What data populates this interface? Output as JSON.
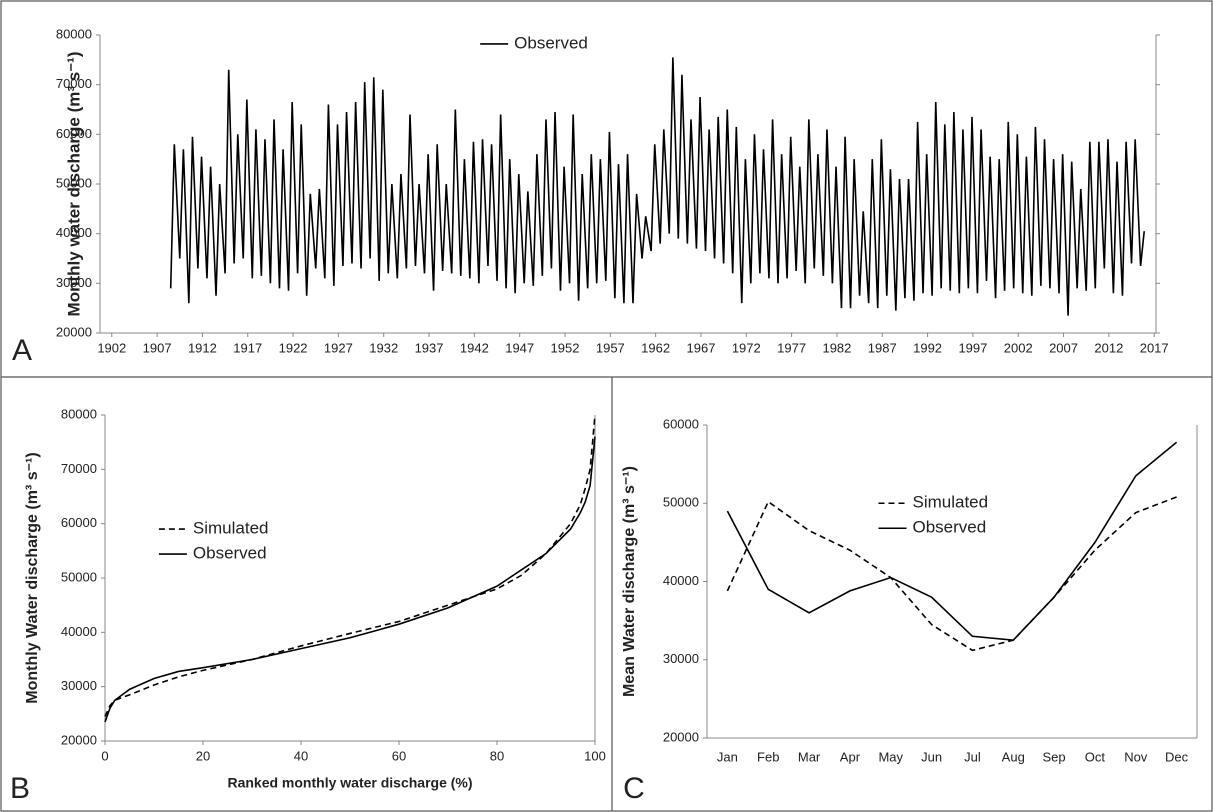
{
  "chart_data": [
    {
      "type": "line",
      "panel_label": "A",
      "y_label": "Monthly water discharge (m³ s⁻¹)",
      "xlim": [
        1900.7,
        2017.2
      ],
      "xticks": [
        1902,
        1907,
        1912,
        1917,
        1922,
        1927,
        1932,
        1937,
        1942,
        1947,
        1952,
        1957,
        1962,
        1967,
        1972,
        1977,
        1982,
        1987,
        1992,
        1997,
        2002,
        2007,
        2012,
        2017
      ],
      "ylim": [
        20000,
        80000
      ],
      "yticks": [
        20000,
        30000,
        40000,
        50000,
        60000,
        70000,
        80000
      ],
      "legend": "top",
      "x": [
        1908.5,
        1908.9,
        1909.5,
        1909.9,
        1910.5,
        1910.9,
        1911.5,
        1911.9,
        1912.5,
        1912.9,
        1913.5,
        1913.9,
        1914.5,
        1914.9,
        1915.5,
        1915.9,
        1916.5,
        1916.9,
        1917.5,
        1917.9,
        1918.5,
        1918.9,
        1919.5,
        1919.9,
        1920.5,
        1920.9,
        1921.5,
        1921.9,
        1922.5,
        1922.9,
        1923.5,
        1923.9,
        1924.5,
        1924.9,
        1925.5,
        1925.9,
        1926.5,
        1926.9,
        1927.5,
        1927.9,
        1928.5,
        1928.9,
        1929.5,
        1929.9,
        1930.5,
        1930.9,
        1931.5,
        1931.9,
        1932.5,
        1932.9,
        1933.5,
        1933.9,
        1934.5,
        1934.9,
        1935.5,
        1935.9,
        1936.5,
        1936.9,
        1937.5,
        1937.9,
        1938.5,
        1938.9,
        1939.5,
        1939.9,
        1940.5,
        1940.9,
        1941.5,
        1941.9,
        1942.5,
        1942.9,
        1943.5,
        1943.9,
        1944.5,
        1944.9,
        1945.5,
        1945.9,
        1946.5,
        1946.9,
        1947.5,
        1947.9,
        1948.5,
        1948.9,
        1949.5,
        1949.9,
        1950.5,
        1950.9,
        1951.5,
        1951.9,
        1952.5,
        1952.9,
        1953.5,
        1953.9,
        1954.5,
        1954.9,
        1955.5,
        1955.9,
        1956.5,
        1956.9,
        1957.5,
        1957.9,
        1958.5,
        1958.9,
        1959.5,
        1959.9,
        1960.5,
        1960.9,
        1961.5,
        1961.9,
        1962.5,
        1962.9,
        1963.5,
        1963.9,
        1964.5,
        1964.9,
        1965.5,
        1965.9,
        1966.5,
        1966.9,
        1967.5,
        1967.9,
        1968.5,
        1968.9,
        1969.5,
        1969.9,
        1970.5,
        1970.9,
        1971.5,
        1971.9,
        1972.5,
        1972.9,
        1973.5,
        1973.9,
        1974.5,
        1974.9,
        1975.5,
        1975.9,
        1976.5,
        1976.9,
        1977.5,
        1977.9,
        1978.5,
        1978.9,
        1979.5,
        1979.9,
        1980.5,
        1980.9,
        1981.5,
        1981.9,
        1982.5,
        1982.9,
        1983.5,
        1983.9,
        1984.5,
        1984.9,
        1985.5,
        1985.9,
        1986.5,
        1986.9,
        1987.5,
        1987.9,
        1988.5,
        1988.9,
        1989.5,
        1989.9,
        1990.5,
        1990.9,
        1991.5,
        1991.9,
        1992.5,
        1992.9,
        1993.5,
        1993.9,
        1994.5,
        1994.9,
        1995.5,
        1995.9,
        1996.5,
        1996.9,
        1997.5,
        1997.9,
        1998.5,
        1998.9,
        1999.5,
        1999.9,
        2000.5,
        2000.9,
        2001.5,
        2001.9,
        2002.5,
        2002.9,
        2003.5,
        2003.9,
        2004.5,
        2004.9,
        2005.5,
        2005.9,
        2006.5,
        2006.9,
        2007.5,
        2007.9,
        2008.5,
        2008.9,
        2009.5,
        2009.9,
        2010.5,
        2010.9,
        2011.5,
        2011.9,
        2012.5,
        2012.9,
        2013.5,
        2013.9,
        2014.5,
        2014.9,
        2015.5,
        2015.9
      ],
      "series": [
        {
          "name": "Observed",
          "color": "#000000",
          "style": "solid",
          "values": [
            29000,
            58000,
            35000,
            57000,
            26000,
            59500,
            33000,
            55500,
            31000,
            53500,
            27500,
            50000,
            32000,
            73000,
            34000,
            60000,
            35000,
            67000,
            31000,
            61000,
            31500,
            59000,
            30000,
            63000,
            29000,
            57000,
            28500,
            66500,
            32000,
            62000,
            27500,
            48000,
            33000,
            49000,
            31000,
            66000,
            29500,
            62000,
            33500,
            64500,
            34000,
            66500,
            33000,
            70500,
            35000,
            71500,
            30500,
            69000,
            32000,
            50000,
            31000,
            52000,
            33000,
            64000,
            33500,
            50000,
            32000,
            56000,
            28500,
            58000,
            32500,
            50000,
            32000,
            65000,
            31500,
            55000,
            31000,
            58500,
            30000,
            59000,
            33500,
            58000,
            30500,
            64000,
            29000,
            55000,
            28000,
            52000,
            30000,
            48500,
            29500,
            56000,
            31500,
            63000,
            33000,
            64500,
            28500,
            53500,
            30000,
            64000,
            26500,
            52000,
            29000,
            56000,
            30000,
            55000,
            30500,
            60500,
            27000,
            54000,
            26000,
            56000,
            26000,
            48000,
            35000,
            43500,
            36500,
            58000,
            38000,
            61000,
            40000,
            75500,
            39000,
            72000,
            38000,
            63000,
            37000,
            67500,
            36500,
            61000,
            35000,
            63500,
            34000,
            65000,
            32000,
            61500,
            26000,
            55000,
            30000,
            60000,
            32000,
            57000,
            31000,
            63000,
            30000,
            56000,
            31000,
            59500,
            32500,
            53500,
            30000,
            63000,
            33000,
            56000,
            31500,
            61000,
            30000,
            53500,
            25000,
            59500,
            25000,
            55000,
            27500,
            44500,
            26000,
            55000,
            25000,
            59000,
            27500,
            53000,
            24500,
            51000,
            27000,
            51000,
            26500,
            62500,
            28000,
            56000,
            27500,
            66500,
            29000,
            62000,
            28500,
            64500,
            28000,
            61000,
            29000,
            63500,
            28000,
            61000,
            30500,
            55500,
            27000,
            55000,
            28500,
            62500,
            29000,
            60000,
            28000,
            55500,
            27500,
            61500,
            29500,
            59000,
            29000,
            55000,
            28000,
            56000,
            23500,
            54500,
            29000,
            49000,
            28500,
            58500,
            29000,
            58500,
            33000,
            59000,
            28000,
            54500,
            27500,
            58500,
            34000,
            59000,
            33500,
            40500
          ]
        }
      ]
    },
    {
      "type": "line",
      "panel_label": "B",
      "y_label": "Monthly Water discharge (m³ s⁻¹)",
      "x_label": "Ranked monthly water discharge (%)",
      "xlim": [
        0,
        100
      ],
      "xticks": [
        0,
        20,
        40,
        60,
        80,
        100
      ],
      "ylim": [
        20000,
        80000
      ],
      "yticks": [
        20000,
        30000,
        40000,
        50000,
        60000,
        70000,
        80000
      ],
      "legend": "center-left",
      "x": [
        0,
        1,
        2,
        5,
        10,
        15,
        20,
        30,
        40,
        50,
        60,
        70,
        80,
        85,
        90,
        95,
        97,
        98,
        99,
        100
      ],
      "series": [
        {
          "name": "Simulated",
          "color": "#000000",
          "style": "dashed",
          "values": [
            24500,
            26500,
            27500,
            28500,
            30300,
            31800,
            33000,
            35000,
            37500,
            39800,
            42000,
            45000,
            48000,
            50500,
            54500,
            60000,
            63500,
            66500,
            70000,
            80000
          ]
        },
        {
          "name": "Observed",
          "color": "#000000",
          "style": "solid",
          "values": [
            23500,
            26000,
            27500,
            29500,
            31500,
            32800,
            33500,
            35000,
            37000,
            39000,
            41500,
            44500,
            48500,
            51500,
            54500,
            59000,
            62000,
            64000,
            67000,
            76000
          ]
        }
      ]
    },
    {
      "type": "line",
      "panel_label": "C",
      "y_label": "Mean Water discharge (m³ s⁻¹)",
      "categories": [
        "Jan",
        "Feb",
        "Mar",
        "Apr",
        "May",
        "Jun",
        "Jul",
        "Aug",
        "Sep",
        "Oct",
        "Nov",
        "Dec"
      ],
      "ylim": [
        20000,
        60000
      ],
      "yticks": [
        20000,
        30000,
        40000,
        50000,
        60000
      ],
      "legend": "center",
      "series": [
        {
          "name": "Simulated",
          "color": "#000000",
          "style": "dashed",
          "values": [
            38800,
            50200,
            46500,
            44000,
            40500,
            34500,
            31200,
            32500,
            38000,
            44000,
            48800,
            50800
          ]
        },
        {
          "name": "Observed",
          "color": "#000000",
          "style": "solid",
          "values": [
            49000,
            39000,
            36000,
            38800,
            40500,
            38000,
            33000,
            32500,
            38000,
            45000,
            53500,
            57800
          ]
        }
      ]
    }
  ]
}
